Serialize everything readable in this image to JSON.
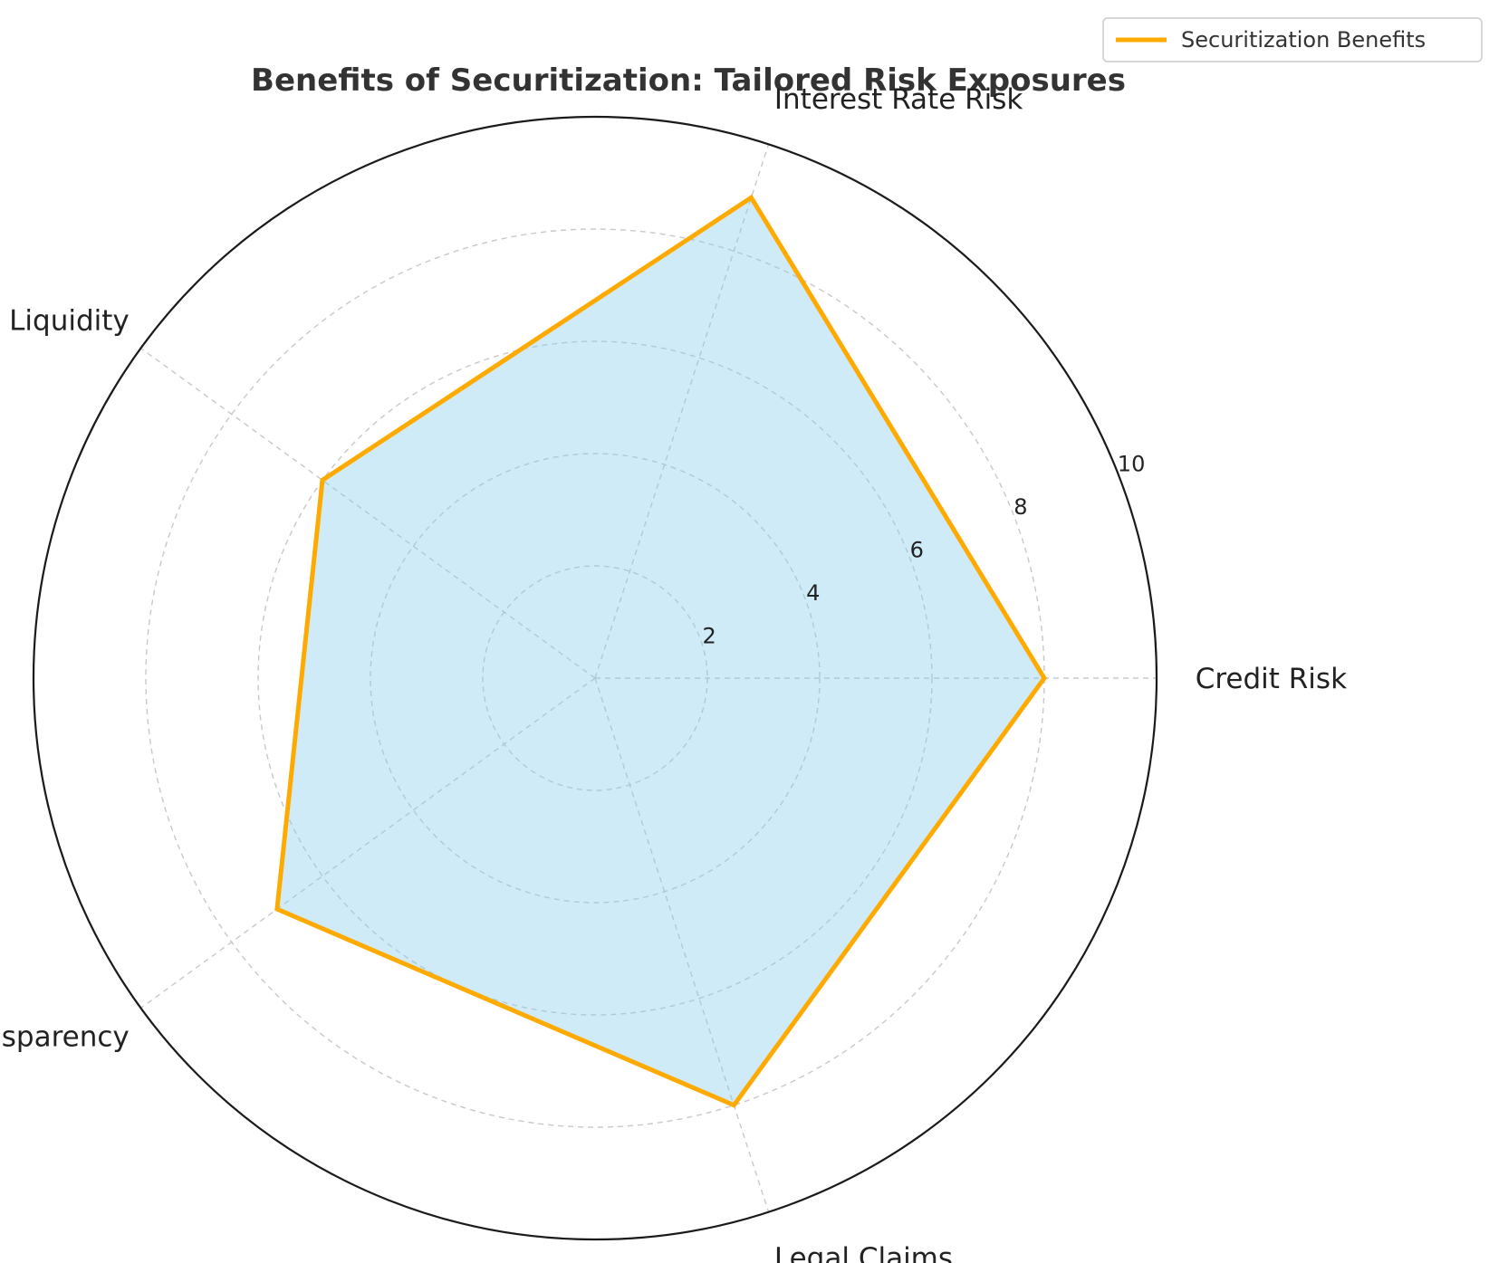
{
  "chart_data": {
    "type": "radar",
    "title": "Benefits of Securitization: Tailored Risk Exposures",
    "categories": [
      "Credit Risk",
      "Interest Rate Risk",
      "Liquidity",
      "Transparency",
      "Legal Claims"
    ],
    "series": [
      {
        "name": "Securitization Benefits",
        "values": [
          8,
          9,
          6,
          7,
          8
        ]
      }
    ],
    "rlim": [
      0,
      10
    ],
    "rticks": [
      2,
      4,
      6,
      8,
      10
    ],
    "grid": true,
    "legend": "top-right",
    "colors": {
      "line": "#FFAA00",
      "fill": "#87CEEB",
      "grid": "#c8c8c8",
      "frame": "#1a1a1a"
    }
  }
}
